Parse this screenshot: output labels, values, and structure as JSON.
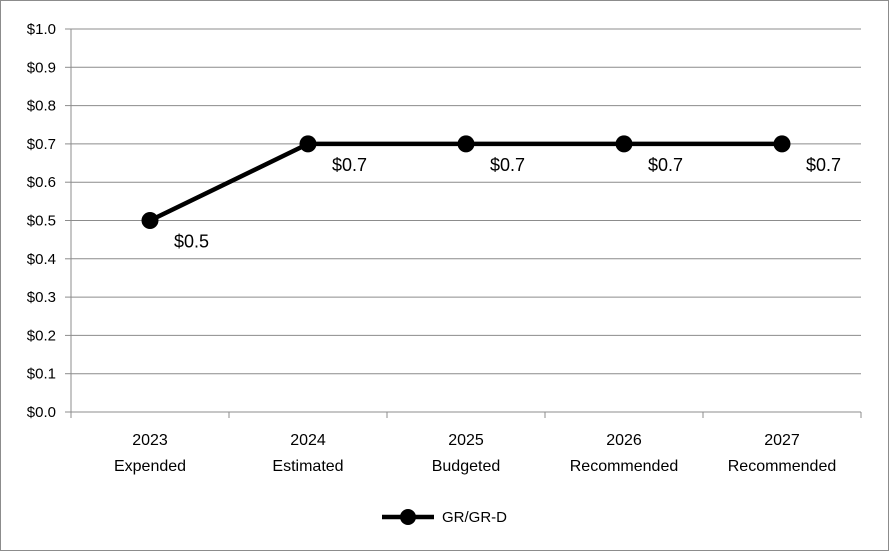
{
  "chart_data": {
    "type": "line",
    "categories": [
      [
        "2023",
        "Expended"
      ],
      [
        "2024",
        "Estimated"
      ],
      [
        "2025",
        "Budgeted"
      ],
      [
        "2026",
        "Recommended"
      ],
      [
        "2027",
        "Recommended"
      ]
    ],
    "series": [
      {
        "name": "GR/GR-D",
        "values": [
          0.5,
          0.7,
          0.7,
          0.7,
          0.7
        ],
        "labels": [
          "$0.5",
          "$0.7",
          "$0.7",
          "$0.7",
          "$0.7"
        ],
        "color": "#000000"
      }
    ],
    "y_ticks": [
      "$0.0",
      "$0.1",
      "$0.2",
      "$0.3",
      "$0.4",
      "$0.5",
      "$0.6",
      "$0.7",
      "$0.8",
      "$0.9",
      "$1.0"
    ],
    "ylim": [
      0,
      1.0
    ],
    "y_step": 0.1,
    "grid": true,
    "gridline_color": "#8c8c8c",
    "legend_position": "bottom"
  }
}
